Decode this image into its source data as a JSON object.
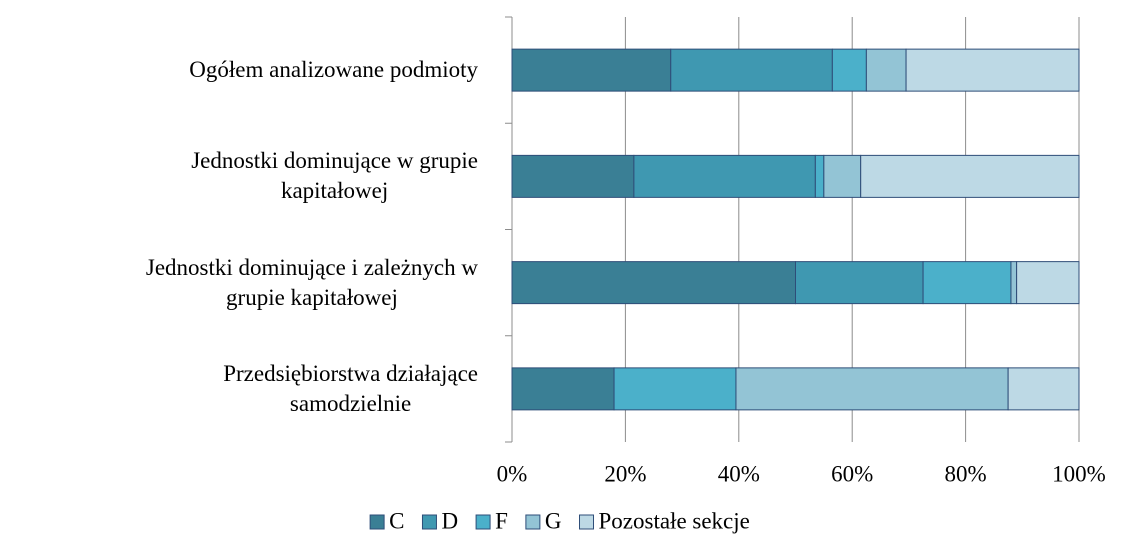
{
  "chart_data": {
    "type": "stacked_bar_horizontal",
    "categories": [
      "Ogółem analizowane podmioty",
      "Jednostki dominujące w grupie\nkapitałowej",
      "Jednostki dominujące i zależnych w\ngrupie kapitałowej",
      "Przedsiębiorstwa działające\nsamodzielnie"
    ],
    "series": [
      {
        "name": "C",
        "color": "#3a7f95",
        "values": [
          28,
          21.5,
          50,
          18
        ]
      },
      {
        "name": "D",
        "color": "#3f98b1",
        "values": [
          28.5,
          32,
          22.5,
          0
        ]
      },
      {
        "name": "F",
        "color": "#4bb0ca",
        "values": [
          6,
          1.5,
          15.5,
          21.5
        ]
      },
      {
        "name": "G",
        "color": "#93c4d5",
        "values": [
          7,
          6.5,
          1,
          48
        ]
      },
      {
        "name": "Pozostałe sekcje",
        "color": "#bdd9e5",
        "values": [
          30.5,
          38.5,
          11,
          12.5
        ]
      }
    ],
    "xlim": [
      0,
      100
    ],
    "xticks": [
      {
        "value": 0,
        "label": "0%"
      },
      {
        "value": 20,
        "label": "20%"
      },
      {
        "value": 40,
        "label": "40%"
      },
      {
        "value": 60,
        "label": "60%"
      },
      {
        "value": 80,
        "label": "80%"
      },
      {
        "value": 100,
        "label": "100%"
      }
    ],
    "grid": true,
    "legend": "bottom"
  }
}
